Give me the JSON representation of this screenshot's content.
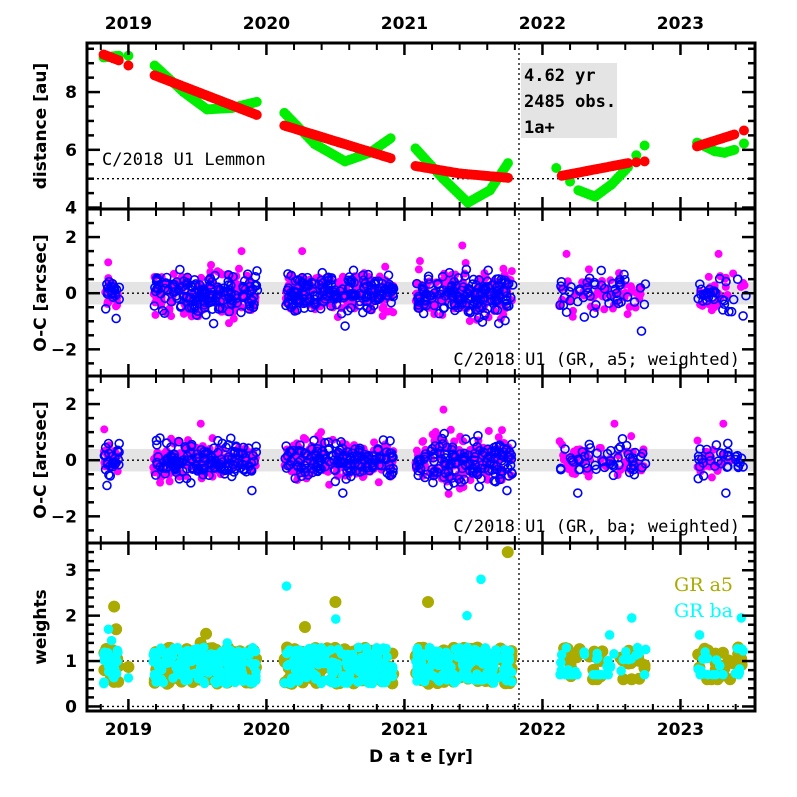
{
  "colors": {
    "distance_smooth": "#ff0000",
    "distance_oscillating": "#00ee00",
    "oc_filled": "#ff00ff",
    "oc_open": "#0000ff",
    "weights_a5": "#aaaa00",
    "weights_ba": "#00ffff",
    "band": "#e4e4e4"
  },
  "chart_data": [
    {
      "type": "scatter",
      "panel": "distance",
      "ylabel": "distance [au]",
      "ylim": [
        3.95,
        9.7
      ],
      "yticks": [
        4,
        6,
        8
      ],
      "xlim": [
        2018.7,
        2023.54
      ],
      "xticks": [
        "2019",
        "2020",
        "2021",
        "2022",
        "2023"
      ],
      "reference_line": 5,
      "annotation": "C/2018 U1 Lemmon",
      "infobox": [
        "4.62 yr",
        "2485 obs.",
        "1a+"
      ],
      "series": [
        {
          "color": "#ff0000",
          "segments": [
            [
              [
                2018.82,
                9.3
              ],
              [
                2018.93,
                9.1
              ]
            ],
            [
              [
                2019.0,
                8.92
              ]
            ],
            [
              [
                2019.19,
                8.58
              ],
              [
                2019.93,
                7.21
              ]
            ],
            [
              [
                2020.13,
                6.84
              ],
              [
                2020.9,
                5.71
              ]
            ],
            [
              [
                2021.08,
                5.44
              ],
              [
                2021.4,
                5.18
              ],
              [
                2021.75,
                5.03
              ]
            ],
            [
              [
                2022.14,
                5.1
              ],
              [
                2022.62,
                5.54
              ]
            ],
            [
              [
                2022.68,
                5.57
              ]
            ],
            [
              [
                2022.74,
                5.6
              ]
            ],
            [
              [
                2023.12,
                6.12
              ],
              [
                2023.39,
                6.53
              ]
            ],
            [
              [
                2023.46,
                6.67
              ]
            ]
          ]
        },
        {
          "color": "#00ee00",
          "segments": [
            [
              [
                2018.82,
                9.2
              ],
              [
                2018.93,
                9.26
              ]
            ],
            [
              [
                2019.0,
                9.26
              ]
            ],
            [
              [
                2019.19,
                8.92
              ],
              [
                2019.4,
                8.0
              ],
              [
                2019.57,
                7.4
              ],
              [
                2019.75,
                7.45
              ],
              [
                2019.93,
                7.66
              ]
            ],
            [
              [
                2020.13,
                7.28
              ],
              [
                2020.35,
                6.2
              ],
              [
                2020.57,
                5.6
              ],
              [
                2020.75,
                5.9
              ],
              [
                2020.9,
                6.4
              ]
            ],
            [
              [
                2021.08,
                6.05
              ],
              [
                2021.28,
                5.0
              ],
              [
                2021.46,
                4.17
              ],
              [
                2021.62,
                4.6
              ],
              [
                2021.75,
                5.54
              ]
            ],
            [
              [
                2022.1,
                5.37
              ]
            ],
            [
              [
                2022.2,
                4.9
              ]
            ],
            [
              [
                2022.26,
                4.6
              ],
              [
                2022.38,
                4.38
              ],
              [
                2022.5,
                4.8
              ],
              [
                2022.62,
                5.4
              ]
            ],
            [
              [
                2022.68,
                5.81
              ]
            ],
            [
              [
                2022.74,
                6.15
              ]
            ],
            [
              [
                2023.12,
                6.25
              ],
              [
                2023.25,
                5.95
              ],
              [
                2023.32,
                5.9
              ],
              [
                2023.39,
                6.0
              ]
            ],
            [
              [
                2023.46,
                6.22
              ]
            ]
          ]
        }
      ]
    },
    {
      "type": "scatter",
      "panel": "oc_a5",
      "ylabel": "O-C [arcsec]",
      "ylim": [
        -2.95,
        3.0
      ],
      "yticks": [
        -2,
        0,
        2
      ],
      "reference_line": 0,
      "band": [
        -0.4,
        0.4
      ],
      "annotation": "C/2018 U1 (GR, a5; weighted)",
      "seasons": [
        {
          "start": 2018.82,
          "end": 2018.93,
          "range": [
            -1.0,
            1.1
          ]
        },
        {
          "start": 2019.18,
          "end": 2019.93,
          "range": [
            -1.2,
            1.5
          ]
        },
        {
          "start": 2020.13,
          "end": 2020.92,
          "range": [
            -1.3,
            1.5
          ]
        },
        {
          "start": 2021.08,
          "end": 2021.78,
          "range": [
            -1.2,
            1.7
          ]
        },
        {
          "start": 2022.12,
          "end": 2022.75,
          "range": [
            -1.5,
            1.4
          ]
        },
        {
          "start": 2023.12,
          "end": 2023.47,
          "range": [
            -0.9,
            1.4
          ]
        }
      ]
    },
    {
      "type": "scatter",
      "panel": "oc_ba",
      "ylabel": "O-C [arcsec]",
      "ylim": [
        -2.95,
        3.0
      ],
      "yticks": [
        -2,
        0,
        2
      ],
      "reference_line": 0,
      "band": [
        -0.4,
        0.4
      ],
      "annotation": "C/2018 U1 (GR, ba; weighted)",
      "seasons": [
        {
          "start": 2018.82,
          "end": 2018.93,
          "range": [
            -1.0,
            1.1
          ]
        },
        {
          "start": 2019.18,
          "end": 2019.93,
          "range": [
            -1.2,
            1.3
          ]
        },
        {
          "start": 2020.13,
          "end": 2020.92,
          "range": [
            -1.3,
            1.0
          ]
        },
        {
          "start": 2021.08,
          "end": 2021.78,
          "range": [
            -1.2,
            1.8
          ]
        },
        {
          "start": 2022.12,
          "end": 2022.75,
          "range": [
            -1.3,
            1.3
          ]
        },
        {
          "start": 2023.12,
          "end": 2023.47,
          "range": [
            -1.3,
            1.3
          ]
        }
      ]
    },
    {
      "type": "scatter",
      "panel": "weights",
      "ylabel": "weights",
      "xlabel": "D a t e [yr]",
      "ylim": [
        -0.1,
        3.6
      ],
      "yticks": [
        0,
        1,
        2,
        3
      ],
      "reference_lines": [
        0,
        1
      ],
      "series": [
        {
          "name": "GR a5",
          "color": "#aaaa00",
          "seasons": [
            {
              "start": 2018.82,
              "end": 2018.93,
              "range": [
                0.4,
                2.2
              ]
            },
            {
              "start": 2019.0,
              "end": 2019.0,
              "range": [
                0.87,
                0.87
              ]
            },
            {
              "start": 2019.18,
              "end": 2019.93,
              "range": [
                0.5,
                1.6
              ]
            },
            {
              "start": 2020.13,
              "end": 2020.92,
              "range": [
                0.45,
                2.3
              ]
            },
            {
              "start": 2021.08,
              "end": 2021.78,
              "range": [
                0.3,
                3.4
              ]
            },
            {
              "start": 2022.12,
              "end": 2022.75,
              "range": [
                0.6,
                1.0
              ]
            },
            {
              "start": 2023.12,
              "end": 2023.47,
              "range": [
                0.6,
                0.9
              ]
            }
          ]
        },
        {
          "name": "GR ba",
          "color": "#00ffff",
          "seasons": [
            {
              "start": 2018.82,
              "end": 2018.93,
              "range": [
                0.3,
                1.7
              ]
            },
            {
              "start": 2019.0,
              "end": 2019.0,
              "range": [
                0.63,
                0.63
              ]
            },
            {
              "start": 2019.18,
              "end": 2019.93,
              "range": [
                0.4,
                1.4
              ]
            },
            {
              "start": 2020.13,
              "end": 2020.92,
              "range": [
                0.4,
                2.65
              ]
            },
            {
              "start": 2021.08,
              "end": 2021.78,
              "range": [
                0.3,
                2.8
              ]
            },
            {
              "start": 2022.12,
              "end": 2022.75,
              "range": [
                0.7,
                1.95
              ]
            },
            {
              "start": 2023.12,
              "end": 2023.47,
              "range": [
                0.7,
                1.95
              ]
            }
          ]
        }
      ]
    }
  ],
  "divider_date": 2021.83
}
